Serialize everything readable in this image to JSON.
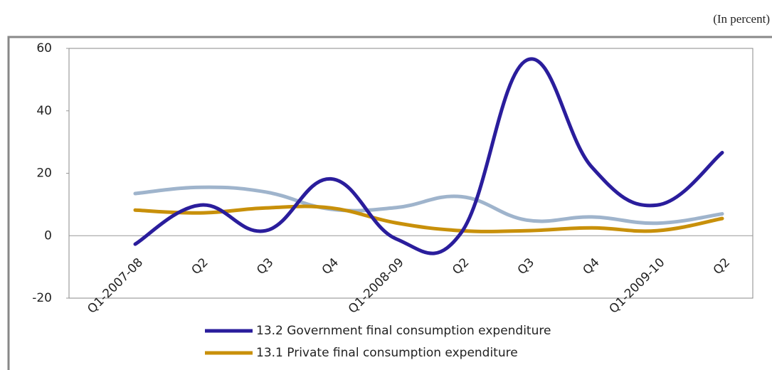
{
  "chart_data": {
    "type": "line",
    "unit_note": "(In percent)",
    "categories": [
      "Q1-2007-08",
      "Q2",
      "Q3",
      "Q4",
      "Q1-2008-09",
      "Q2",
      "Q3",
      "Q4",
      "Q1-2009-10",
      "Q2"
    ],
    "series": [
      {
        "name": "13.2 Government final consumption expenditure",
        "color": "#2a1d9c",
        "values": [
          -2.7,
          9.8,
          1.6,
          18.2,
          -1,
          1,
          56.2,
          22,
          9.8,
          26.6
        ]
      },
      {
        "name": "13.1 Private final consumption expenditure",
        "color": "#c8900a",
        "values": [
          8.2,
          7.3,
          8.9,
          8.9,
          4.1,
          1.6,
          1.6,
          2.5,
          1.6,
          5.5
        ]
      },
      {
        "color": "#9fb4cc",
        "values": [
          13.5,
          15.5,
          14,
          8.5,
          9,
          12.5,
          5,
          6,
          4,
          7
        ]
      }
    ],
    "ylim": [
      -20,
      60
    ],
    "yticks": [
      -20,
      0,
      20,
      40,
      60
    ]
  }
}
